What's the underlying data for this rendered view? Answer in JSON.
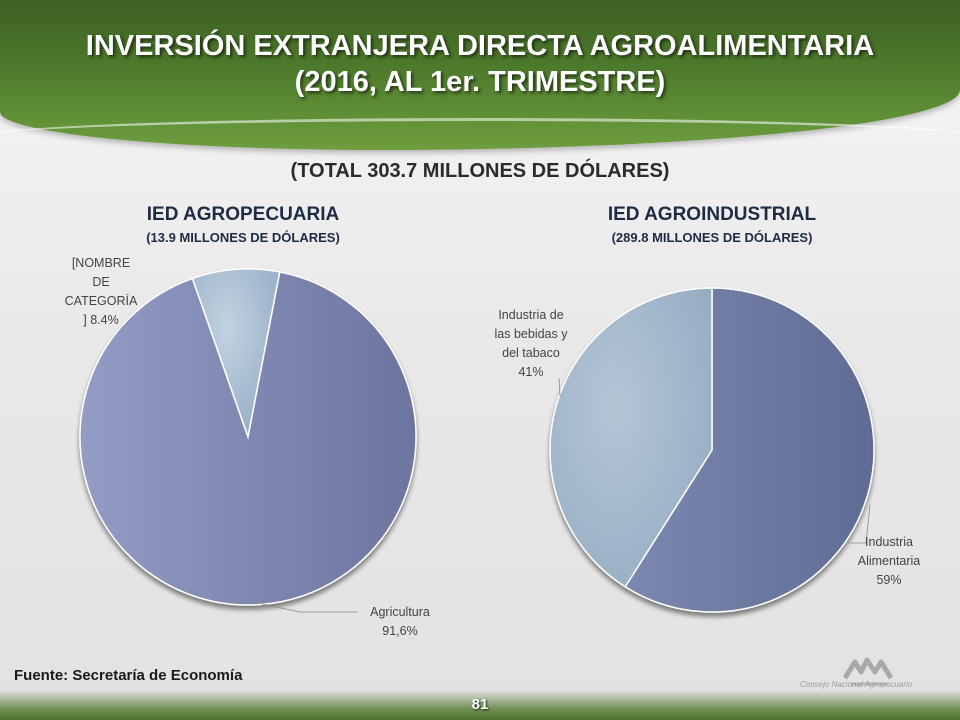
{
  "header": {
    "title_line1": "INVERSIÓN EXTRANJERA DIRECTA AGROALIMENTARIA",
    "title_line2": "(2016, AL 1er. TRIMESTRE)"
  },
  "total": "(TOTAL 303.7 MILLONES DE DÓLARES)",
  "chart_data": [
    {
      "type": "pie",
      "title": "IED AGROPECUARIA",
      "subtitle": "(13.9 MILLONES DE DÓLARES)",
      "categories": [
        "[NOMBRE DE CATEGORÍA ]",
        "Agricultura"
      ],
      "values": [
        8.4,
        91.6
      ],
      "labels": [
        "[NOMBRE DE CATEGORÍA ] 8.4%",
        "Agricultura 91,6%"
      ],
      "label_lines": [
        [
          "[NOMBRE",
          "DE",
          "CATEGORÍA",
          "] 8.4%"
        ],
        [
          "Agricultura",
          "91,6%"
        ]
      ],
      "colors": [
        "#a6bcd0",
        "#7d86b0"
      ],
      "legend": "none"
    },
    {
      "type": "pie",
      "title": "IED AGROINDUSTRIAL",
      "subtitle": "(289.8 MILLONES DE DÓLARES)",
      "categories": [
        "Industria Alimentaria",
        "Industria de las bebidas y del tabaco"
      ],
      "values": [
        59,
        41
      ],
      "labels": [
        "Industria Alimentaria 59%",
        "Industria de las bebidas y del tabaco 41%"
      ],
      "label_lines": [
        [
          "Industria",
          "Alimentaria",
          "59%"
        ],
        [
          "Industria de",
          "las bebidas y",
          "del tabaco",
          "41%"
        ]
      ],
      "colors": [
        "#6e7aa3",
        "#a0b6cb"
      ],
      "legend": "none"
    }
  ],
  "source": "Fuente: Secretaría de Economía",
  "page_number": "81",
  "logo": {
    "icon": "consejo-logo-icon",
    "text": "Consejo Nacional Agropecuario"
  }
}
